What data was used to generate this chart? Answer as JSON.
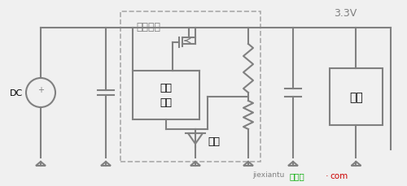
{
  "bg_color": "#f0f0f0",
  "line_color": "#808080",
  "line_width": 1.5,
  "title_color": "#808080",
  "label_color_black": "#000000",
  "label_color_gray": "#808080",
  "label_color_green": "#00aa00",
  "label_color_red": "#cc0000",
  "text_3v3": "3.3V",
  "text_DC": "DC",
  "text_bypass": "旁路元件",
  "text_gate_drive": "削极\n驱动",
  "text_ref": "基准",
  "text_load": "负荷",
  "text_jiexiantu": "接线图",
  "text_com": "com",
  "text_jiexiantu2": "jiexiantu"
}
